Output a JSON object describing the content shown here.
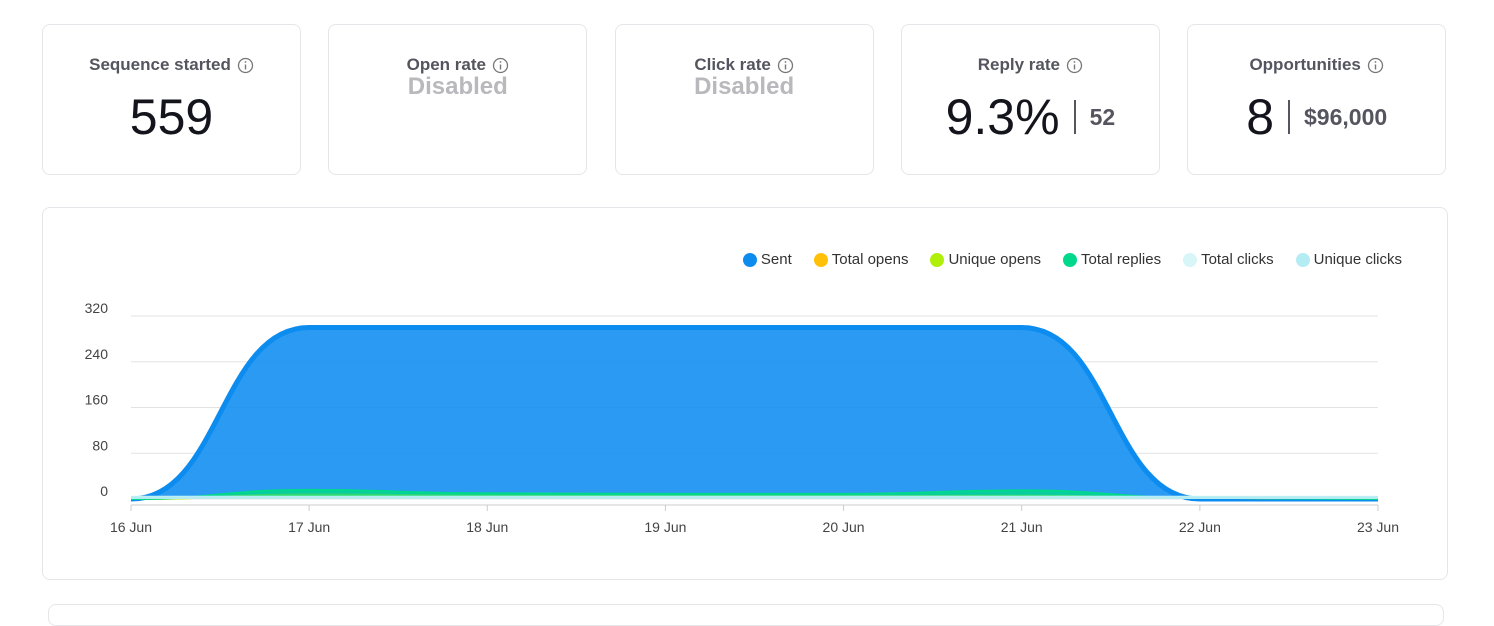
{
  "cards": [
    {
      "title": "Sequence started",
      "value": "559"
    },
    {
      "title": "Open rate",
      "value": "Disabled",
      "disabled": true
    },
    {
      "title": "Click rate",
      "value": "Disabled",
      "disabled": true
    },
    {
      "title": "Reply rate",
      "value": "9.3%",
      "secondary": "52"
    },
    {
      "title": "Opportunities",
      "value": "8",
      "secondary": "$96,000"
    }
  ],
  "chart_data": {
    "type": "area",
    "categories": [
      "16 Jun",
      "17 Jun",
      "18 Jun",
      "19 Jun",
      "20 Jun",
      "21 Jun",
      "22 Jun",
      "23 Jun"
    ],
    "series": [
      {
        "name": "Sent",
        "color": "#0d8cf0",
        "values": [
          0,
          300,
          300,
          300,
          300,
          300,
          0,
          0
        ]
      },
      {
        "name": "Total opens",
        "color": "#ffc107",
        "values": [
          0,
          8,
          6,
          5,
          5,
          6,
          2,
          1
        ]
      },
      {
        "name": "Unique opens",
        "color": "#b0ef0a",
        "values": [
          0,
          6,
          5,
          4,
          4,
          5,
          2,
          1
        ]
      },
      {
        "name": "Total replies",
        "color": "#00d98b",
        "values": [
          0,
          16,
          10,
          9,
          9,
          15,
          2,
          0
        ]
      },
      {
        "name": "Total clicks",
        "color": "#d8f5f8",
        "values": [
          4,
          4,
          4,
          4,
          4,
          4,
          4,
          4
        ]
      },
      {
        "name": "Unique clicks",
        "color": "#b4ecf3",
        "values": [
          3,
          3,
          3,
          3,
          3,
          3,
          3,
          3
        ]
      }
    ],
    "ylim": [
      0,
      320
    ],
    "yticks": [
      0,
      80,
      160,
      240,
      320
    ],
    "grid": true
  }
}
